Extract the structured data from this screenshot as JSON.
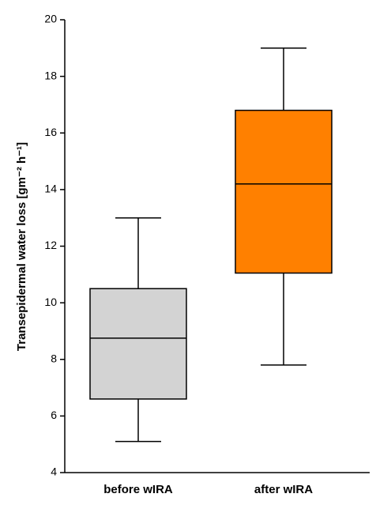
{
  "chart_data": {
    "type": "box",
    "y_label": "Transepidermal water loss [gm⁻² h⁻¹]",
    "categories": [
      "before wIRA",
      "after wIRA"
    ],
    "boxes": [
      {
        "min": 5.1,
        "q1": 6.6,
        "median": 8.75,
        "q3": 10.5,
        "max": 13,
        "color": "#d3d3d3"
      },
      {
        "min": 7.8,
        "q1": 11.05,
        "median": 14.2,
        "q3": 16.8,
        "max": 19,
        "color": "#ff8000"
      }
    ],
    "ylim": [
      4,
      20
    ],
    "yticks": [
      4,
      6,
      8,
      10,
      12,
      14,
      16,
      18,
      20
    ],
    "grid": false
  }
}
